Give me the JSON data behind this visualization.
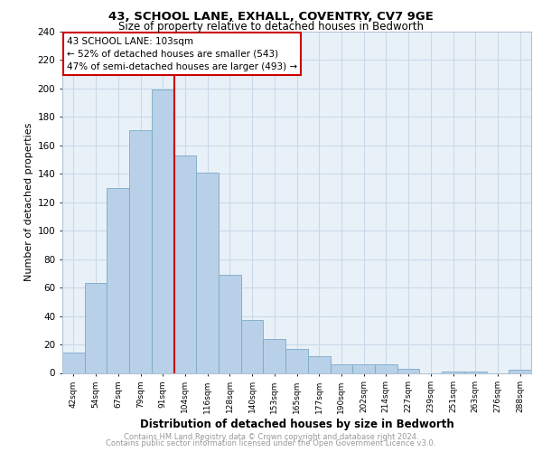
{
  "title1": "43, SCHOOL LANE, EXHALL, COVENTRY, CV7 9GE",
  "title2": "Size of property relative to detached houses in Bedworth",
  "xlabel": "Distribution of detached houses by size in Bedworth",
  "ylabel": "Number of detached properties",
  "categories": [
    "42sqm",
    "54sqm",
    "67sqm",
    "79sqm",
    "91sqm",
    "104sqm",
    "116sqm",
    "128sqm",
    "140sqm",
    "153sqm",
    "165sqm",
    "177sqm",
    "190sqm",
    "202sqm",
    "214sqm",
    "227sqm",
    "239sqm",
    "251sqm",
    "263sqm",
    "276sqm",
    "288sqm"
  ],
  "values": [
    14,
    63,
    130,
    171,
    199,
    153,
    141,
    69,
    37,
    24,
    17,
    12,
    6,
    6,
    6,
    3,
    0,
    1,
    1,
    0,
    2
  ],
  "bar_color": "#b8d0e8",
  "bar_edge_color": "#7aaac8",
  "highlight_line_label": "43 SCHOOL LANE: 103sqm",
  "annotation_line1": "← 52% of detached houses are smaller (543)",
  "annotation_line2": "47% of semi-detached houses are larger (493) →",
  "box_color": "#cc0000",
  "grid_color": "#c8d8e8",
  "bg_color": "#e8f0f8",
  "footnote1": "Contains HM Land Registry data © Crown copyright and database right 2024.",
  "footnote2": "Contains public sector information licensed under the Open Government Licence v3.0.",
  "ylim": [
    0,
    240
  ],
  "yticks": [
    0,
    20,
    40,
    60,
    80,
    100,
    120,
    140,
    160,
    180,
    200,
    220,
    240
  ]
}
